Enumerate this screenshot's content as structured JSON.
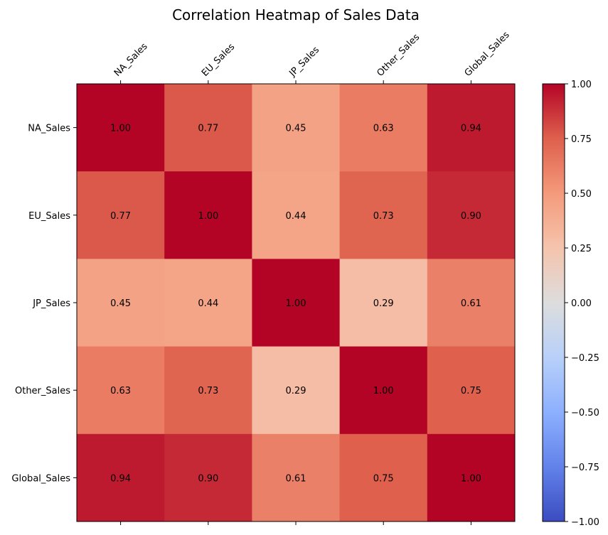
{
  "chart_data": {
    "type": "heatmap",
    "title": "Correlation Heatmap of Sales Data",
    "x_labels": [
      "NA_Sales",
      "EU_Sales",
      "JP_Sales",
      "Other_Sales",
      "Global_Sales"
    ],
    "y_labels": [
      "NA_Sales",
      "EU_Sales",
      "JP_Sales",
      "Other_Sales",
      "Global_Sales"
    ],
    "values": [
      [
        1.0,
        0.77,
        0.45,
        0.63,
        0.94
      ],
      [
        0.77,
        1.0,
        0.44,
        0.73,
        0.9
      ],
      [
        0.45,
        0.44,
        1.0,
        0.29,
        0.61
      ],
      [
        0.63,
        0.73,
        0.29,
        1.0,
        0.75
      ],
      [
        0.94,
        0.9,
        0.61,
        0.75,
        1.0
      ]
    ],
    "value_format": "0.00",
    "colormap": "coolwarm",
    "vmin": -1.0,
    "vmax": 1.0,
    "colorbar_ticks": [
      "1.00",
      "0.75",
      "0.50",
      "0.25",
      "0.00",
      "−0.25",
      "−0.50",
      "−0.75",
      "−1.00"
    ],
    "x_tick_position": "top",
    "x_tick_rotation": 45,
    "legend": "colorbar-right",
    "grid": false
  }
}
